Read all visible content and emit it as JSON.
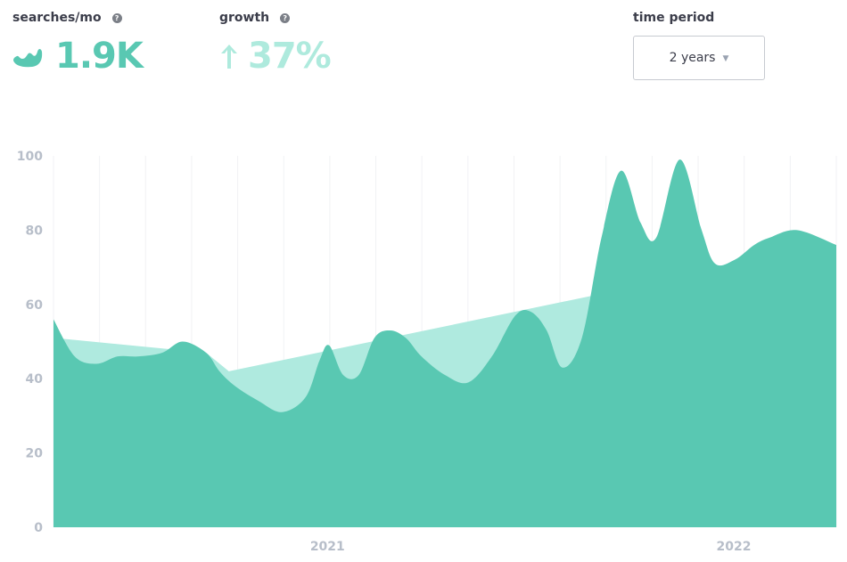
{
  "metrics": {
    "searches": {
      "label": "searches/mo",
      "value": "1.9K",
      "icon": "trend-line-icon"
    },
    "growth": {
      "label": "growth",
      "value": "37%",
      "icon": "arrow-up-icon"
    },
    "help_icon": "?"
  },
  "time_period": {
    "label": "time period",
    "selected": "2 years",
    "caret": "▼"
  },
  "colors": {
    "primary": "#59c8b2",
    "trend": "#afeadf",
    "axis_text": "#b7bec9",
    "grid": "#f1f2f4"
  },
  "chart_data": {
    "type": "area",
    "ylim": [
      0,
      100
    ],
    "y_ticks": [
      0,
      20,
      40,
      60,
      80,
      100
    ],
    "x_ticks": [
      {
        "label": "2021",
        "x": 0.35
      },
      {
        "label": "2022",
        "x": 0.869
      }
    ],
    "xlim": [
      0,
      1
    ],
    "series": [
      {
        "x": [
          0,
          0.027,
          0.055,
          0.082,
          0.109,
          0.139,
          0.165,
          0.195,
          0.212,
          0.232,
          0.262,
          0.292,
          0.322,
          0.34,
          0.352,
          0.37,
          0.39,
          0.41,
          0.43,
          0.45,
          0.47,
          0.5,
          0.53,
          0.56,
          0.59,
          0.61,
          0.63,
          0.65,
          0.675,
          0.7,
          0.725,
          0.75,
          0.77,
          0.8,
          0.828,
          0.845,
          0.87,
          0.895,
          0.915,
          0.95,
          1
        ],
        "y": [
          56,
          46,
          44,
          46,
          46,
          47,
          50,
          47,
          42,
          38,
          34,
          31,
          35,
          45,
          49,
          41,
          41,
          51,
          53,
          51,
          46,
          41,
          39,
          46,
          57,
          58,
          53,
          43,
          51,
          78,
          96,
          82,
          78,
          99,
          80,
          71,
          72,
          76,
          78,
          80,
          76
        ]
      },
      {
        "x": [
          0,
          0.195,
          0.224,
          1
        ],
        "y": [
          51,
          47,
          42,
          76
        ]
      }
    ]
  }
}
